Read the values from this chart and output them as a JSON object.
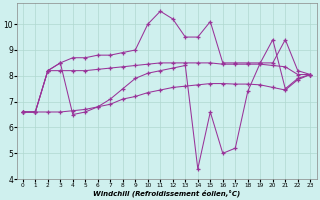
{
  "xlabel": "Windchill (Refroidissement éolien,°C)",
  "background_color": "#cff0ee",
  "grid_color": "#b0d8d0",
  "line_color": "#993399",
  "xlim_min": -0.5,
  "xlim_max": 23.5,
  "ylim_min": 4,
  "ylim_max": 10.8,
  "xticks": [
    0,
    1,
    2,
    3,
    4,
    5,
    6,
    7,
    8,
    9,
    10,
    11,
    12,
    13,
    14,
    15,
    16,
    17,
    18,
    19,
    20,
    21,
    22,
    23
  ],
  "yticks": [
    4,
    5,
    6,
    7,
    8,
    9,
    10
  ],
  "series": [
    {
      "x": [
        0,
        1,
        2,
        3,
        4,
        5,
        6,
        7,
        8,
        9,
        10,
        11,
        12,
        13,
        14,
        15,
        16,
        17,
        18,
        19,
        20,
        21,
        22,
        23
      ],
      "y": [
        6.6,
        6.6,
        8.2,
        8.5,
        8.7,
        8.7,
        8.8,
        8.8,
        8.9,
        9.0,
        10.0,
        10.5,
        10.2,
        9.5,
        9.5,
        10.1,
        8.5,
        8.5,
        8.5,
        8.5,
        8.5,
        9.4,
        8.2,
        8.05
      ]
    },
    {
      "x": [
        0,
        1,
        2,
        3,
        4,
        5,
        6,
        7,
        8,
        9,
        10,
        11,
        12,
        13,
        14,
        15,
        16,
        17,
        18,
        19,
        20,
        21,
        22,
        23
      ],
      "y": [
        6.6,
        6.6,
        8.2,
        8.5,
        6.5,
        6.6,
        6.8,
        7.1,
        7.5,
        7.9,
        8.1,
        8.2,
        8.3,
        8.4,
        4.4,
        6.6,
        5.0,
        5.2,
        7.4,
        8.5,
        9.4,
        7.5,
        7.9,
        8.05
      ]
    },
    {
      "x": [
        0,
        1,
        2,
        3,
        4,
        5,
        6,
        7,
        8,
        9,
        10,
        11,
        12,
        13,
        14,
        15,
        16,
        17,
        18,
        19,
        20,
        21,
        22,
        23
      ],
      "y": [
        6.6,
        6.6,
        8.2,
        8.2,
        8.2,
        8.2,
        8.25,
        8.3,
        8.35,
        8.4,
        8.45,
        8.5,
        8.5,
        8.5,
        8.5,
        8.5,
        8.45,
        8.45,
        8.45,
        8.45,
        8.4,
        8.35,
        8.05,
        8.05
      ]
    },
    {
      "x": [
        0,
        1,
        2,
        3,
        4,
        5,
        6,
        7,
        8,
        9,
        10,
        11,
        12,
        13,
        14,
        15,
        16,
        17,
        18,
        19,
        20,
        21,
        22,
        23
      ],
      "y": [
        6.6,
        6.6,
        6.6,
        6.6,
        6.65,
        6.7,
        6.8,
        6.9,
        7.1,
        7.2,
        7.35,
        7.45,
        7.55,
        7.6,
        7.65,
        7.7,
        7.7,
        7.68,
        7.68,
        7.65,
        7.55,
        7.45,
        7.85,
        8.05
      ]
    }
  ]
}
